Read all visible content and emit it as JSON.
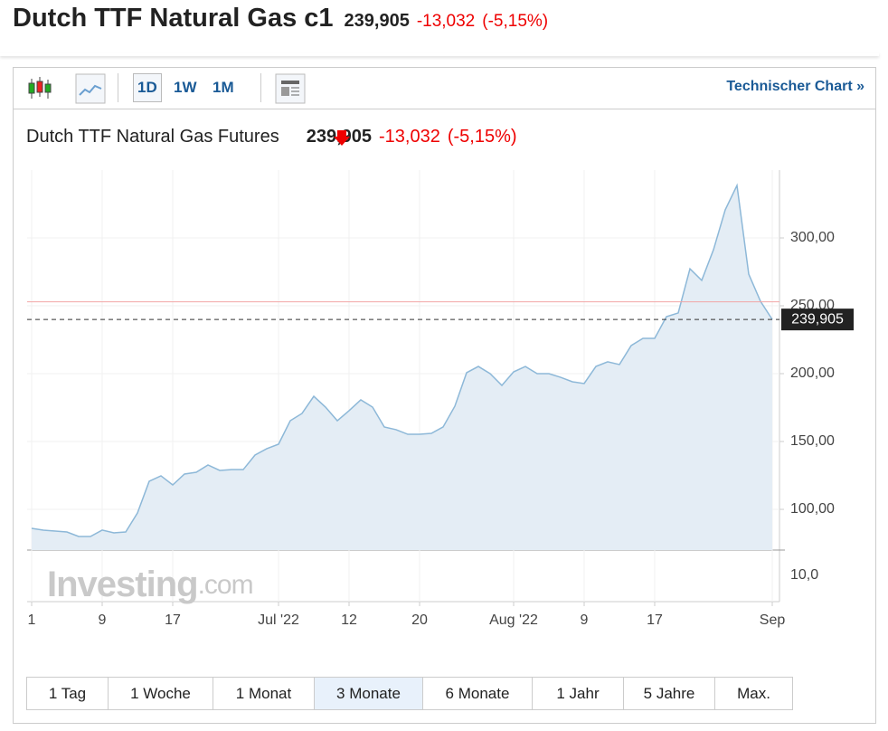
{
  "header": {
    "title": "Dutch TTF Natural Gas c1",
    "price": "239,905",
    "change": "-13,032",
    "change_pct": "(-5,15%)"
  },
  "toolbar": {
    "buttons": [
      "1D",
      "1W",
      "1M"
    ],
    "link": "Technischer Chart",
    "link_icon": "»"
  },
  "chart_data": {
    "type": "area",
    "title": "Dutch TTF Natural Gas Futures",
    "price": "239,905",
    "change": "-13,032",
    "change_pct": "(-5,15%)",
    "categories": [
      "1",
      null,
      null,
      null,
      null,
      null,
      "9",
      null,
      null,
      null,
      null,
      null,
      "17",
      null,
      null,
      null,
      null,
      null,
      null,
      null,
      null,
      "Jul '22",
      null,
      null,
      null,
      null,
      null,
      "12",
      null,
      null,
      null,
      null,
      null,
      "20",
      null,
      null,
      null,
      null,
      null,
      null,
      null,
      "Aug '22",
      null,
      null,
      null,
      null,
      null,
      "9",
      null,
      null,
      null,
      null,
      null,
      "17",
      null,
      null,
      null,
      null,
      null,
      null,
      null,
      null,
      null,
      "Sep"
    ],
    "values": [
      86,
      84.7,
      84,
      83.3,
      80,
      80,
      84.7,
      82.7,
      83.3,
      97.3,
      120.7,
      124.7,
      118,
      126,
      127.3,
      132.7,
      128.7,
      129.3,
      129.3,
      140,
      144.7,
      148,
      165.3,
      170.7,
      183.3,
      175.3,
      165.3,
      172.7,
      180.7,
      175.3,
      160.7,
      158.7,
      155.3,
      155.3,
      156,
      160.7,
      176,
      200.7,
      205.3,
      200,
      191.3,
      201.3,
      205.3,
      200,
      200,
      197.3,
      194,
      192.7,
      205.3,
      208.7,
      206.7,
      220.7,
      226,
      226,
      242,
      244.7,
      277.3,
      268.7,
      291.3,
      320.7,
      338.7,
      273.3,
      253.3,
      239.905
    ],
    "color": "#8db8d8",
    "fill": "#e4edf5",
    "ylim": [
      70,
      350
    ],
    "yticks": [
      {
        "value": 100,
        "label": "100,00"
      },
      {
        "value": 150,
        "label": "150,00"
      },
      {
        "value": 200,
        "label": "200,00"
      },
      {
        "value": 250,
        "label": "250,00"
      },
      {
        "value": 300,
        "label": "300,00"
      }
    ],
    "last_value": 239.905,
    "last_label": "239,905",
    "reference_value": 252.937,
    "reference_color": "#f2a6a6",
    "volume_label": "10,0",
    "watermark": [
      "Investing",
      ".com"
    ]
  },
  "ranges": {
    "options": [
      "1 Tag",
      "1 Woche",
      "1 Monat",
      "3 Monate",
      "6 Monate",
      "1 Jahr",
      "5 Jahre",
      "Max."
    ],
    "active": 3
  }
}
